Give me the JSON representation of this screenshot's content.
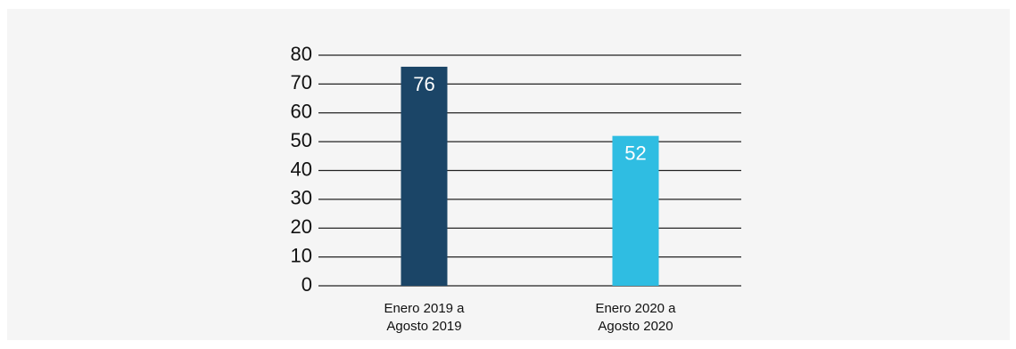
{
  "chart_data": {
    "type": "bar",
    "categories": [
      [
        "Enero 2019 a",
        "Agosto 2019"
      ],
      [
        "Enero 2020 a",
        "Agosto 2020"
      ]
    ],
    "values": [
      76,
      52
    ],
    "data_labels": [
      "76",
      "52"
    ],
    "colors": [
      "#1b4567",
      "#2fbde2"
    ],
    "ylim": [
      0,
      80
    ],
    "yticks": [
      "0",
      "10",
      "20",
      "30",
      "40",
      "50",
      "60",
      "70",
      "80"
    ],
    "grid": true,
    "legend": "none",
    "title": "",
    "xlabel": "",
    "ylabel": ""
  }
}
